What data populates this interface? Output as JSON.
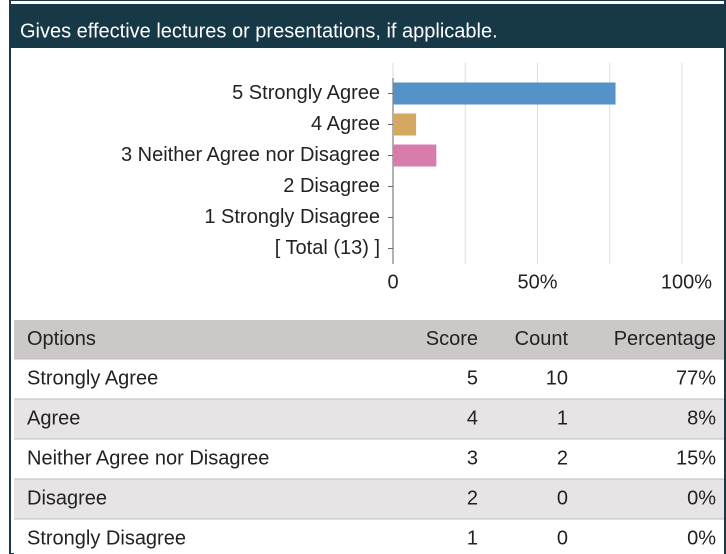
{
  "chart_data": {
    "type": "hbar",
    "title": "Gives effective lectures or presentations, if applicable.",
    "categories": [
      "5 Strongly Agree",
      "4 Agree",
      "3 Neither Agree nor Disagree",
      "2 Disagree",
      "1 Strongly Disagree",
      "[ Total (13) ]"
    ],
    "values": [
      77,
      8,
      15,
      0,
      0,
      null
    ],
    "colors": [
      "#5592c8",
      "#d4a860",
      "#d87bad",
      "#999999",
      "#999999",
      "#999999"
    ],
    "xlim": [
      0,
      100
    ],
    "xticks": [
      0,
      {
        "value": 50,
        "label": "50%"
      },
      {
        "value": 100,
        "label": "100%"
      }
    ],
    "xminor": [
      25,
      75
    ],
    "grid": true
  },
  "table": {
    "columns": [
      "Options",
      "Score",
      "Count",
      "Percentage"
    ],
    "rows": [
      [
        "Strongly Agree",
        "5",
        "10",
        "77%"
      ],
      [
        "Agree",
        "4",
        "1",
        "8%"
      ],
      [
        "Neither Agree nor Disagree",
        "3",
        "2",
        "15%"
      ],
      [
        "Disagree",
        "2",
        "0",
        "0%"
      ],
      [
        "Strongly Disagree",
        "1",
        "0",
        "0%"
      ]
    ]
  }
}
